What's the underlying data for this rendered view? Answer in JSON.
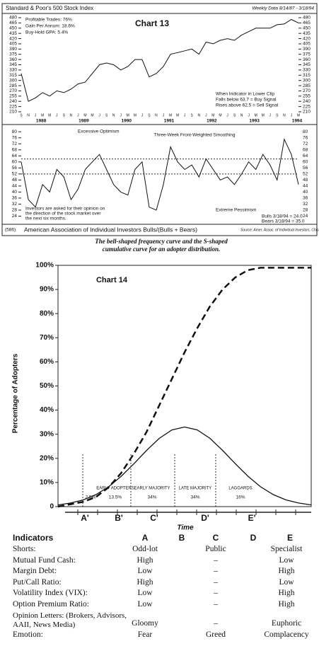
{
  "chart_data": [
    {
      "type": "line",
      "title": "Standard & Poor's 500 Stock Index",
      "subtitle": "Weekly Data 8/14/87 - 3/18/94",
      "label": "Chart 13",
      "stats": [
        "Profitable Trades:  76%",
        "Gain Per Annum:  18.6%",
        "Buy-Hold GPA:  5.4%"
      ],
      "annotations": [
        "When Indicator in Lower Clip",
        "Falls below 63.7 = Buy Signal",
        "Rises above 62.5 = Sell Signal"
      ],
      "categories": [
        "S",
        "N",
        "J",
        "M",
        "M",
        "J",
        "S",
        "N",
        "J",
        "M",
        "M",
        "J",
        "S",
        "N",
        "J",
        "M",
        "M",
        "J",
        "S",
        "N",
        "J",
        "M",
        "M",
        "J",
        "S",
        "N",
        "J",
        "M",
        "M",
        "J",
        "S",
        "N",
        "J",
        "M",
        "M",
        "J",
        "S",
        "N",
        "J",
        "M"
      ],
      "x_years": [
        null,
        null,
        "1988",
        null,
        null,
        null,
        null,
        null,
        "1989",
        null,
        null,
        null,
        null,
        null,
        "1990",
        null,
        null,
        null,
        null,
        null,
        "1991",
        null,
        null,
        null,
        null,
        null,
        "1992",
        null,
        null,
        null,
        null,
        null,
        "1993",
        null,
        null,
        null,
        null,
        null,
        "1994",
        null
      ],
      "values": [
        320,
        240,
        250,
        265,
        255,
        270,
        265,
        275,
        290,
        295,
        320,
        345,
        350,
        345,
        330,
        340,
        360,
        360,
        310,
        320,
        340,
        375,
        380,
        385,
        390,
        375,
        410,
        405,
        415,
        420,
        415,
        430,
        440,
        450,
        450,
        450,
        460,
        462,
        475,
        465
      ],
      "color": "#111",
      "ylim": [
        210,
        480
      ],
      "yticks": [
        210,
        225,
        240,
        255,
        270,
        285,
        300,
        315,
        330,
        345,
        360,
        375,
        390,
        405,
        420,
        435,
        450,
        465,
        480
      ]
    },
    {
      "type": "line",
      "title": "American Association of Individual Investors Bulls/(Bulls + Bears)",
      "note": "(586)",
      "source": "Source: Amer. Assoc. of Individual Investors, Chicago, IL",
      "annotations": [
        "Excessive Optimism",
        "Three-Week Front-Weighted Smoothing",
        "Extreme Pessimism",
        "Investors are asked for their opinion on",
        "the direction of the stock market over",
        "the next six months."
      ],
      "readings": [
        "Bulls 3/18/94 = 24.0",
        "Bears 3/18/94 = 35.0"
      ],
      "values": [
        60,
        35,
        30,
        45,
        40,
        55,
        50,
        35,
        42,
        55,
        60,
        65,
        55,
        45,
        40,
        38,
        55,
        60,
        30,
        28,
        45,
        70,
        60,
        55,
        58,
        50,
        62,
        55,
        48,
        50,
        45,
        52,
        60,
        55,
        65,
        58,
        48,
        75,
        65,
        45
      ],
      "hlines": [
        62,
        52
      ],
      "color": "#111",
      "ylim": [
        20,
        82
      ],
      "yticks": [
        24,
        28,
        32,
        36,
        40,
        44,
        48,
        52,
        56,
        60,
        64,
        68,
        72,
        76,
        80
      ]
    },
    {
      "type": "line",
      "title": "The bell-shaped frequency curve and the S-shaped",
      "subtitle": "cumulative curve for an adopter distribution.",
      "label": "Chart 14",
      "y_label": "Percentage of Adopters",
      "x_label": "Time",
      "x": [
        0,
        0.5,
        1,
        1.5,
        2,
        2.5,
        3,
        3.5,
        4,
        4.5,
        5,
        5.5,
        6,
        6.5,
        7,
        7.5,
        8,
        8.5,
        9,
        9.5,
        10
      ],
      "series": [
        {
          "values": [
            0,
            1,
            2,
            4,
            8,
            14,
            22,
            31,
            42,
            53,
            64,
            74,
            83,
            90,
            95,
            98,
            99,
            99,
            99,
            99,
            99
          ],
          "color": "#111",
          "dashed": true
        },
        {
          "values": [
            0.7,
            1.5,
            2.8,
            5,
            8.2,
            12.6,
            17.8,
            23.3,
            28.3,
            31.8,
            33,
            31.8,
            28.3,
            23.3,
            17.8,
            12.6,
            8.2,
            5,
            2.8,
            1.5,
            0.7
          ],
          "color": "#111",
          "dashed": false
        }
      ],
      "segments": [
        {
          "share": {
            "value": 2.5,
            "label": "2.5%"
          }
        },
        {
          "name": "EARLY ADOPTERS",
          "share": {
            "value": 13.5,
            "label": "13.5%"
          }
        },
        {
          "name": "EARLY MAJORITY",
          "share": {
            "value": 34,
            "label": "34%"
          }
        },
        {
          "name": "LATE MAJORITY",
          "share": {
            "value": 34,
            "label": "34%"
          }
        },
        {
          "name": "LAGGARDS",
          "share": {
            "value": 16,
            "label": "16%"
          }
        }
      ],
      "phases": [
        "A'",
        "B'",
        "C'",
        "D'",
        "E'"
      ],
      "xlim": [
        0,
        10
      ],
      "ylim": [
        0,
        100
      ],
      "yticks": [
        0,
        {
          "value": 10,
          "label": "10%"
        },
        {
          "value": 20,
          "label": "20%"
        },
        {
          "value": 30,
          "label": "30%"
        },
        {
          "value": 40,
          "label": "40%"
        },
        {
          "value": 50,
          "label": "50%"
        },
        {
          "value": 60,
          "label": "60%"
        },
        {
          "value": 70,
          "label": "70%"
        },
        {
          "value": 80,
          "label": "80%"
        },
        {
          "value": 90,
          "label": "90%"
        },
        {
          "value": 100,
          "label": "100%"
        }
      ]
    }
  ],
  "table": {
    "header": [
      "Indicators",
      "A",
      "B",
      "C",
      "D",
      "E"
    ],
    "rows": [
      [
        "Shorts:",
        "Odd-lot",
        "Public",
        "Specialist"
      ],
      [
        "Mutual Fund Cash:",
        "High",
        "–",
        "Low"
      ],
      [
        "Margin Debt:",
        "Low",
        "–",
        "High"
      ],
      [
        "Put/Call Ratio:",
        "High",
        "–",
        "Low"
      ],
      [
        "Volatility Index (VIX):",
        "Low",
        "–",
        "High"
      ],
      [
        "Option Premium Ratio:",
        "Low",
        "–",
        "High"
      ],
      [
        "Opinion Letters: (Brokers, Advisors, AAII, News Media)",
        "Gloomy",
        "–",
        "Euphoric"
      ],
      [
        "Emotion:",
        "Fear",
        "Greed",
        "Complacency"
      ]
    ]
  }
}
